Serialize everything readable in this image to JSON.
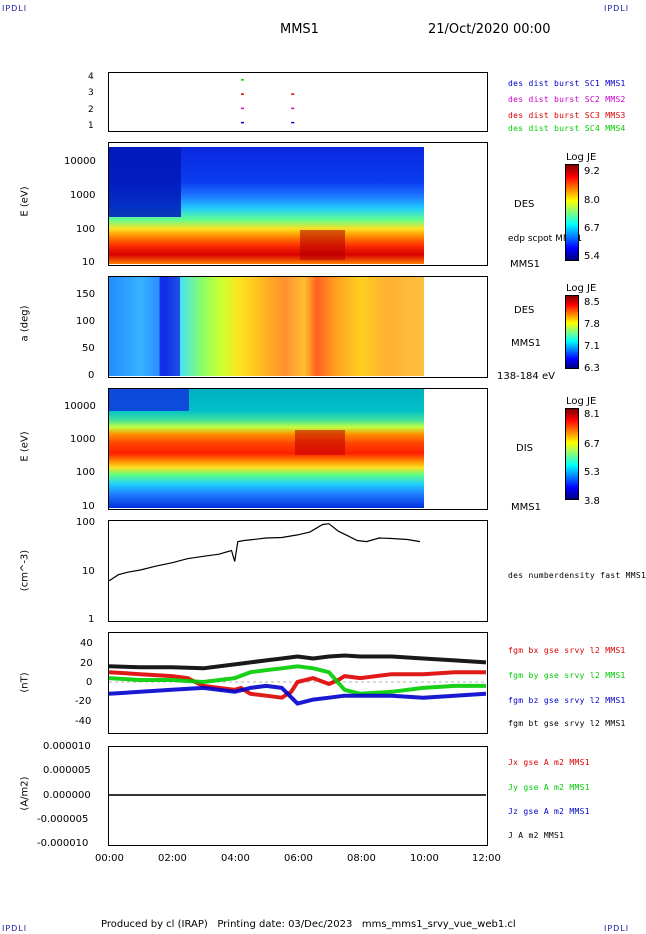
{
  "corner_labels": {
    "tl": "IPDLI",
    "tr": "IPDLI",
    "bl": "IPDLI",
    "br": "IPDLI"
  },
  "header": {
    "spacecraft": "MMS1",
    "datetime": "21/Oct/2020 00:00"
  },
  "footer": {
    "text": "Produced by cl (IRAP)   Printing date: 03/Dec/2023   mms_mms1_srvy_vue_web1.cl"
  },
  "time_axis": {
    "ticks": [
      "00:00",
      "02:00",
      "04:00",
      "06:00",
      "08:00",
      "10:00",
      "12:00"
    ]
  },
  "colors": {
    "blue": "#0000cc",
    "magenta": "#cc00cc",
    "red": "#dd0000",
    "green": "#00cc00",
    "black": "#000000"
  },
  "chart_data": [
    {
      "type": "scatter",
      "panel": "burst",
      "yticks": [
        "4",
        "3",
        "2",
        "1"
      ],
      "ylim": [
        0.5,
        4.5
      ],
      "legend": [
        {
          "name": "des dist burst SC1 MMS1",
          "color": "#0000cc"
        },
        {
          "name": "des dist burst SC2 MMS2",
          "color": "#cc00cc"
        },
        {
          "name": "des dist burst SC3 MMS3",
          "color": "#dd0000"
        },
        {
          "name": "des dist burst SC4 MMS4",
          "color": "#00cc00"
        }
      ],
      "series": [
        {
          "name": "des dist burst SC1 MMS1",
          "x": [
            4.2,
            5.8
          ],
          "y": [
            1,
            1
          ]
        },
        {
          "name": "des dist burst SC2 MMS2",
          "x": [
            4.2,
            5.8
          ],
          "y": [
            2,
            2
          ]
        },
        {
          "name": "des dist burst SC3 MMS3",
          "x": [
            4.2,
            5.8
          ],
          "y": [
            3,
            3
          ]
        },
        {
          "name": "des dist burst SC4 MMS4",
          "x": [
            4.2
          ],
          "y": [
            4
          ]
        }
      ]
    },
    {
      "type": "heatmap",
      "panel": "des_energy",
      "ylabel": "E (eV)",
      "yticks": [
        "10000",
        "1000",
        "100",
        "10"
      ],
      "log_y": true,
      "ylim": [
        10,
        30000
      ],
      "xlim_data_hours": [
        0,
        10
      ],
      "label_instrument": "DES",
      "label_sc": "MMS1",
      "overlay_label": "edp scpot MMS1",
      "colorbar": {
        "title": "Log JE",
        "ticks": [
          "9.2",
          "8.0",
          "6.7",
          "5.4"
        ],
        "range": [
          5.4,
          9.2
        ]
      }
    },
    {
      "type": "heatmap",
      "panel": "des_pitch",
      "ylabel": "a (deg)",
      "yticks": [
        "150",
        "100",
        "50",
        "0"
      ],
      "ylim": [
        0,
        180
      ],
      "label_instrument": "DES",
      "label_sc": "MMS1",
      "energy_range": "138-184 eV",
      "colorbar": {
        "title": "Log JE",
        "ticks": [
          "8.5",
          "7.8",
          "7.1",
          "6.3"
        ],
        "range": [
          6.3,
          8.5
        ]
      }
    },
    {
      "type": "heatmap",
      "panel": "dis_energy",
      "ylabel": "E (eV)",
      "yticks": [
        "10000",
        "1000",
        "100",
        "10"
      ],
      "log_y": true,
      "ylim": [
        10,
        30000
      ],
      "label_instrument": "DIS",
      "label_sc": "MMS1",
      "colorbar": {
        "title": "Log JE",
        "ticks": [
          "8.1",
          "6.7",
          "5.3",
          "3.8"
        ],
        "range": [
          3.8,
          8.1
        ]
      }
    },
    {
      "type": "line",
      "panel": "density",
      "ylabel": "(cm^-3)",
      "yticks": [
        "100",
        "10",
        "1"
      ],
      "log_y": true,
      "ylim": [
        1,
        100
      ],
      "series": [
        {
          "name": "des numberdensity fast MMS1",
          "color": "#000000",
          "x": [
            0,
            0.3,
            0.6,
            1.0,
            1.5,
            2.0,
            2.5,
            3.0,
            3.5,
            3.9,
            4.0,
            4.1,
            4.3,
            4.6,
            5.0,
            5.5,
            6.0,
            6.4,
            6.8,
            7.0,
            7.3,
            7.6,
            7.9,
            8.2,
            8.6,
            9.0,
            9.5,
            9.9
          ],
          "y": [
            6,
            8,
            9,
            10,
            12,
            14,
            17,
            19,
            21,
            25,
            15,
            38,
            40,
            42,
            45,
            46,
            52,
            60,
            85,
            88,
            62,
            50,
            40,
            38,
            45,
            44,
            42,
            38
          ]
        }
      ]
    },
    {
      "type": "line",
      "panel": "fgm",
      "ylabel": "(nT)",
      "yticks": [
        "40",
        "20",
        "0",
        "-20",
        "-40"
      ],
      "ylim": [
        -50,
        50
      ],
      "series": [
        {
          "name": "fgm bx gse srvy l2 MMS1",
          "color": "#dd0000",
          "x": [
            0,
            1,
            2,
            2.5,
            3,
            3.5,
            4,
            4.2,
            4.5,
            5,
            5.5,
            5.8,
            6,
            6.5,
            7,
            7.3,
            7.5,
            8,
            9,
            10,
            11,
            12
          ],
          "y": [
            10,
            8,
            6,
            4,
            -4,
            -6,
            -8,
            -6,
            -12,
            -14,
            -16,
            -10,
            0,
            4,
            -2,
            2,
            6,
            4,
            8,
            8,
            10,
            10
          ]
        },
        {
          "name": "fgm by gse srvy l2 MMS1",
          "color": "#00cc00",
          "x": [
            0,
            1,
            2,
            3,
            4,
            4.5,
            5,
            5.5,
            6,
            6.5,
            7,
            7.5,
            8,
            9,
            10,
            11,
            12
          ],
          "y": [
            4,
            2,
            2,
            0,
            4,
            10,
            12,
            14,
            16,
            14,
            10,
            -8,
            -12,
            -10,
            -6,
            -4,
            -4
          ]
        },
        {
          "name": "fgm bz gse srvy l2 MMS1",
          "color": "#0000cc",
          "x": [
            0,
            1,
            2,
            3,
            4,
            4.5,
            5,
            5.5,
            6,
            6.5,
            7,
            7.5,
            8,
            9,
            10,
            11,
            12
          ],
          "y": [
            -12,
            -10,
            -8,
            -6,
            -10,
            -6,
            -4,
            -6,
            -22,
            -18,
            -16,
            -14,
            -14,
            -14,
            -16,
            -14,
            -12
          ]
        },
        {
          "name": "fgm bt gse srvy l2 MMS1",
          "color": "#000000",
          "x": [
            0,
            1,
            2,
            3,
            4,
            4.5,
            5,
            5.5,
            6,
            6.5,
            7,
            7.5,
            8,
            9,
            10,
            11,
            12
          ],
          "y": [
            16,
            15,
            15,
            14,
            18,
            20,
            22,
            24,
            26,
            24,
            26,
            27,
            26,
            26,
            24,
            22,
            20
          ]
        }
      ]
    },
    {
      "type": "line",
      "panel": "current",
      "ylabel": "(A/m2)",
      "yticks": [
        "0.000010",
        "0.000005",
        "0.000000",
        "-0.000005",
        "-0.000010"
      ],
      "ylim": [
        -1e-05,
        1e-05
      ],
      "series": [
        {
          "name": "Jx gse A m2 MMS1",
          "color": "#dd0000",
          "x": [
            0,
            12
          ],
          "y": [
            0,
            0
          ]
        },
        {
          "name": "Jy gse A m2 MMS1",
          "color": "#00cc00",
          "x": [
            0,
            12
          ],
          "y": [
            0,
            0
          ]
        },
        {
          "name": "Jz gse A m2 MMS1",
          "color": "#0000cc",
          "x": [
            0,
            12
          ],
          "y": [
            0,
            0
          ]
        },
        {
          "name": "J A m2 MMS1",
          "color": "#000000",
          "x": [
            0,
            12
          ],
          "y": [
            0,
            0
          ]
        }
      ]
    }
  ]
}
